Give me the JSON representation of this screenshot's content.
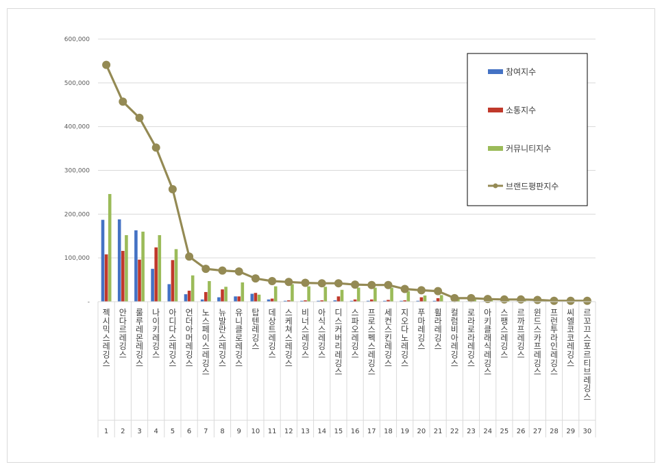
{
  "chart_data": {
    "type": "bar",
    "title": "",
    "xlabel": "",
    "ylabel": "",
    "ylim": [
      0,
      600000
    ],
    "yticks": [
      "600,000",
      "500,000",
      "400,000",
      "300,000",
      "200,000",
      "100,000",
      "-"
    ],
    "grid": true,
    "legend_position": "top-right",
    "categories": [
      "젝시믹스 레깅스",
      "안다르 레깅스",
      "룰루레몬 레깅스",
      "나이키 레깅스",
      "아디다스 레깅스",
      "언더아머 레깅스",
      "노스페이스 레깅스",
      "뉴발란스 레깅스",
      "유니클로 레깅스",
      "탑텐 레깅스",
      "데상트 레깅스",
      "스케쳐스 레깅스",
      "비너스 레깅스",
      "아식스 레깅스",
      "디스커버리 레깅스",
      "스파오 레깅스",
      "프로스펙스 레깅스",
      "세컨스킨 레깅스",
      "지오다노 레깅스",
      "푸마 레깅스",
      "휠라 레깅스",
      "컬럼비아 레깅스",
      "로라로라 레깅스",
      "아키클래식 레깅스",
      "스팽스 레깅스",
      "르까프 레깅스",
      "윈드스카프 레깅스",
      "프런투라인 레깅스",
      "씨엘코코 레깅스",
      "르꼬끄스포르티브 레깅스"
    ],
    "ranks": [
      "1",
      "2",
      "3",
      "4",
      "5",
      "6",
      "7",
      "8",
      "9",
      "10",
      "11",
      "12",
      "13",
      "14",
      "15",
      "16",
      "17",
      "18",
      "19",
      "20",
      "21",
      "22",
      "23",
      "24",
      "25",
      "26",
      "27",
      "28",
      "29",
      "30"
    ],
    "series": [
      {
        "name": "참여지수",
        "type": "bar",
        "color": "#4472c4",
        "values": [
          187000,
          188000,
          163000,
          75000,
          40000,
          17000,
          5000,
          10000,
          12000,
          18000,
          5000,
          2000,
          2000,
          2000,
          3000,
          2000,
          2000,
          2000,
          2000,
          2000,
          2000,
          1000,
          1000,
          1000,
          1000,
          1000,
          1000,
          500,
          500,
          500
        ]
      },
      {
        "name": "소통지수",
        "type": "bar",
        "color": "#c0392b",
        "values": [
          108000,
          116000,
          96000,
          124000,
          95000,
          25000,
          22000,
          28000,
          12000,
          20000,
          7000,
          3000,
          3000,
          3000,
          12000,
          5000,
          5000,
          4000,
          3000,
          10000,
          8000,
          1000,
          1000,
          1000,
          1000,
          1000,
          1000,
          500,
          500,
          500
        ]
      },
      {
        "name": "커뮤니티지수",
        "type": "bar",
        "color": "#9bbb59",
        "values": [
          246000,
          152000,
          160000,
          152000,
          120000,
          60000,
          47000,
          34000,
          44000,
          16000,
          35000,
          40000,
          35000,
          34000,
          27000,
          32000,
          32000,
          32000,
          24000,
          14000,
          15000,
          6000,
          7000,
          5000,
          4000,
          4000,
          3000,
          2000,
          1000,
          1000
        ]
      },
      {
        "name": "브랜드평판지수",
        "type": "line",
        "color": "#948a54",
        "values": [
          541000,
          457000,
          420000,
          352000,
          257000,
          103000,
          75000,
          71000,
          69000,
          53000,
          47000,
          45000,
          43000,
          42000,
          42000,
          39000,
          38000,
          38000,
          29000,
          26000,
          24000,
          8000,
          8000,
          6000,
          5000,
          5000,
          4000,
          2000,
          2000,
          2000
        ]
      }
    ]
  }
}
